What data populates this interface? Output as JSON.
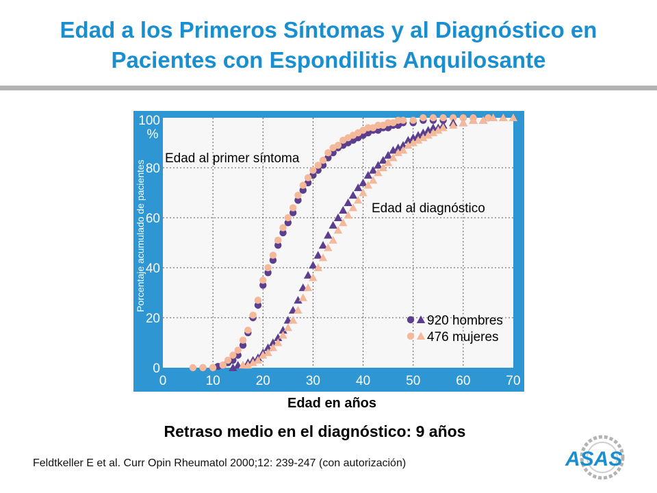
{
  "slide": {
    "title_line1": "Edad a los Primeros Síntomas y al Diagnóstico en",
    "title_line2": "Pacientes con Espondilitis Anquilosante",
    "subtitle": "Retraso medio en el diagnóstico: 9 años",
    "reference": "Feldtkeller E et al. Curr Opin Rheumatol 2000;12: 239-247 (con autorización)",
    "logo_text": "ASAS"
  },
  "chart_data": {
    "type": "scatter",
    "xlabel": "Edad en años",
    "ylabel": "Porcentaje acumulado de pacientes",
    "ylabel_unit": "%",
    "xlim": [
      0,
      70
    ],
    "ylim": [
      0,
      100
    ],
    "x_ticks": [
      0,
      10,
      20,
      30,
      40,
      50,
      60,
      70
    ],
    "y_ticks": [
      0,
      20,
      40,
      60,
      80,
      100
    ],
    "grid": true,
    "annotations": [
      "Edad al primer síntoma",
      "Edad al diagnóstico"
    ],
    "legend": [
      {
        "label": "920 hombres",
        "color": "#5b3f8e"
      },
      {
        "label": "476 mujeres",
        "color": "#f4b89a"
      }
    ],
    "series": [
      {
        "name": "920 hombres",
        "curve": "Edad al primer síntoma",
        "marker": "circle",
        "color": "#5b3f8e",
        "x": [
          8,
          10,
          11,
          12,
          13,
          14,
          15,
          16,
          17,
          18,
          19,
          20,
          21,
          22,
          23,
          24,
          25,
          26,
          27,
          28,
          29,
          30,
          31,
          32,
          33,
          34,
          35,
          36,
          37,
          38,
          39,
          40,
          41,
          42,
          43,
          44,
          45,
          46,
          47,
          48,
          50,
          52,
          54,
          56,
          58,
          60,
          62,
          65
        ],
        "y": [
          0,
          0,
          0.5,
          1,
          2,
          3,
          5,
          9,
          14,
          20,
          25,
          33,
          38,
          43,
          49,
          54,
          58,
          62,
          67,
          71,
          74,
          77,
          79,
          81,
          84,
          86,
          88,
          89,
          90,
          91,
          92,
          93,
          94,
          95,
          95,
          96,
          96,
          97,
          97,
          98,
          98,
          99,
          99,
          99,
          100,
          100,
          100,
          100
        ]
      },
      {
        "name": "476 mujeres",
        "curve": "Edad al primer síntoma",
        "marker": "circle",
        "color": "#f4b89a",
        "x": [
          6,
          8,
          10,
          12,
          13,
          14,
          15,
          16,
          17,
          18,
          19,
          20,
          21,
          22,
          23,
          24,
          25,
          26,
          27,
          28,
          29,
          30,
          31,
          32,
          33,
          34,
          35,
          36,
          37,
          38,
          39,
          40,
          41,
          42,
          43,
          44,
          45,
          46,
          47,
          48,
          50,
          52,
          54,
          56,
          58,
          60,
          62,
          65
        ],
        "y": [
          0,
          0,
          0,
          1,
          3,
          5,
          7,
          11,
          15,
          21,
          27,
          35,
          40,
          45,
          51,
          56,
          60,
          64,
          69,
          73,
          76,
          79,
          81,
          83,
          86,
          88,
          89,
          91,
          92,
          93,
          94,
          95,
          96,
          96,
          97,
          97,
          98,
          98,
          99,
          99,
          99,
          100,
          100,
          100,
          100,
          100,
          100,
          100
        ]
      },
      {
        "name": "920 hombres",
        "curve": "Edad al diagnóstico",
        "marker": "triangle",
        "color": "#5b3f8e",
        "x": [
          14,
          15,
          16,
          17,
          18,
          19,
          20,
          21,
          22,
          23,
          24,
          25,
          26,
          27,
          28,
          29,
          30,
          31,
          32,
          33,
          34,
          35,
          36,
          37,
          38,
          39,
          40,
          41,
          42,
          43,
          44,
          45,
          46,
          47,
          48,
          49,
          50,
          51,
          52,
          53,
          54,
          55,
          56,
          58,
          60,
          62,
          64,
          66,
          68,
          70
        ],
        "y": [
          0,
          1,
          1,
          2,
          3,
          4,
          6,
          8,
          10,
          12,
          15,
          19,
          23,
          27,
          32,
          37,
          41,
          45,
          49,
          53,
          57,
          60,
          63,
          66,
          69,
          72,
          74,
          77,
          79,
          81,
          83,
          85,
          87,
          88,
          89,
          91,
          92,
          93,
          94,
          95,
          96,
          96,
          97,
          98,
          98,
          99,
          99,
          100,
          100,
          100
        ]
      },
      {
        "name": "476 mujeres",
        "curve": "Edad al diagnóstico",
        "marker": "triangle",
        "color": "#f4b89a",
        "x": [
          16,
          17,
          18,
          19,
          20,
          21,
          22,
          23,
          24,
          25,
          26,
          27,
          28,
          29,
          30,
          31,
          32,
          33,
          34,
          35,
          36,
          37,
          38,
          39,
          40,
          41,
          42,
          43,
          44,
          45,
          46,
          47,
          48,
          49,
          50,
          51,
          52,
          53,
          54,
          55,
          56,
          58,
          60,
          62,
          64,
          66,
          68,
          70
        ],
        "y": [
          1,
          1,
          2,
          3,
          5,
          6,
          8,
          10,
          13,
          16,
          19,
          23,
          28,
          32,
          36,
          40,
          44,
          48,
          51,
          55,
          58,
          61,
          64,
          67,
          70,
          73,
          75,
          78,
          80,
          82,
          84,
          86,
          87,
          89,
          90,
          91,
          92,
          93,
          94,
          95,
          96,
          97,
          98,
          99,
          99,
          100,
          100,
          100
        ]
      }
    ]
  }
}
